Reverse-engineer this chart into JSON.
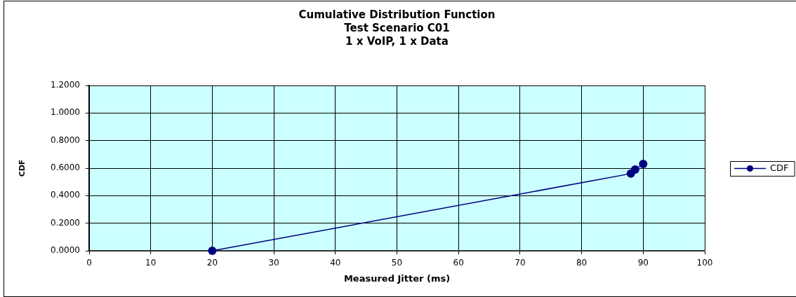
{
  "chart_data": {
    "type": "line",
    "title": "Cumulative Distribution Function",
    "subtitle": "Test Scenario C01\n1 x VoIP, 1 x Data",
    "xlabel": "Measured Jitter (ms)",
    "ylabel": "CDF",
    "x": [
      20,
      88,
      88.7,
      90
    ],
    "series": [
      {
        "name": "CDF",
        "color": "#000080",
        "values": [
          0,
          0.56,
          0.59,
          0.63
        ]
      }
    ],
    "xlim": [
      0,
      100
    ],
    "xticks": [
      0,
      10,
      20,
      30,
      40,
      50,
      60,
      70,
      80,
      90,
      100
    ],
    "ylim": [
      0,
      1.2
    ],
    "yticks": [
      {
        "value": 0,
        "label": "0.0000"
      },
      {
        "value": 0.2,
        "label": "0.2000"
      },
      {
        "value": 0.4,
        "label": "0.4000"
      },
      {
        "value": 0.6,
        "label": "0.6000"
      },
      {
        "value": 0.8,
        "label": "0.8000"
      },
      {
        "value": 1,
        "label": "1.0000"
      },
      {
        "value": 1.2,
        "label": "1.2000"
      }
    ],
    "grid": true,
    "legend": "right",
    "marker": "circle",
    "line_style": "solid"
  }
}
